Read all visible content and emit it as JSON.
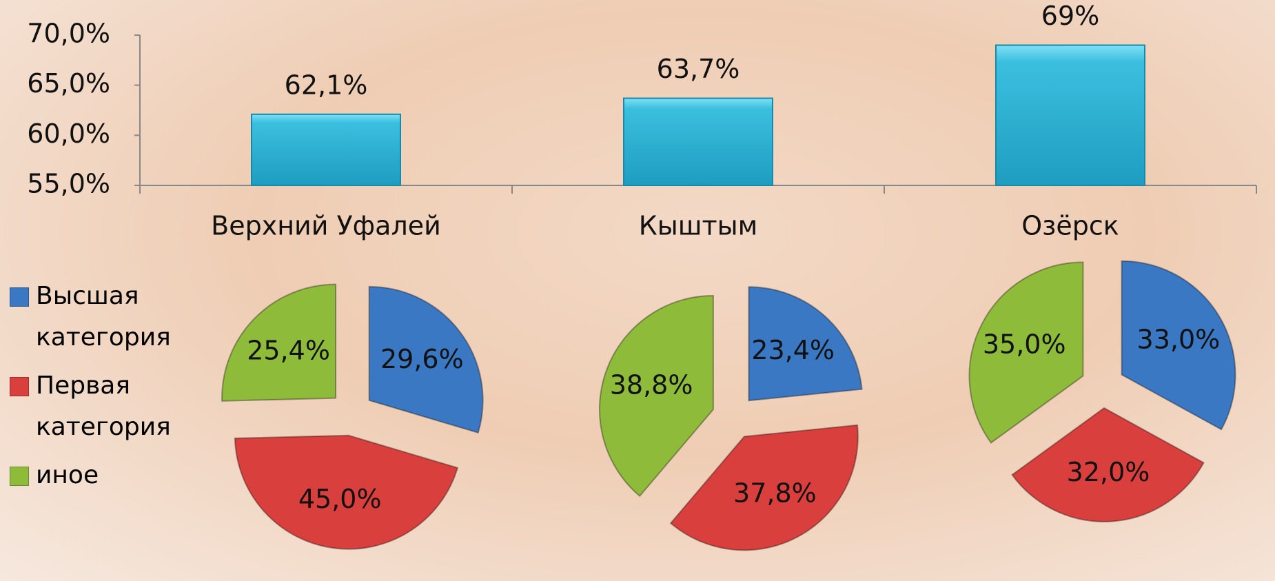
{
  "chart_data": [
    {
      "type": "bar",
      "categories": [
        "Верхний Уфалей",
        "Кыштым",
        "Озёрск"
      ],
      "values": [
        62.1,
        63.7,
        69
      ],
      "value_labels": [
        "62,1%",
        "63,7%",
        "69%"
      ],
      "color": "#2fb5d6",
      "ylim": [
        55,
        70
      ],
      "yticks": [
        {
          "value": 55,
          "label": "55,0%"
        },
        {
          "value": 60,
          "label": "60,0%"
        },
        {
          "value": 65,
          "label": "65,0%"
        },
        {
          "value": 70,
          "label": "70,0%"
        }
      ]
    },
    {
      "type": "pie",
      "categories": [
        "Высшая категория",
        "Первая категория",
        "иное"
      ],
      "colors": [
        "#3a78c4",
        "#d9403d",
        "#8ebc3a"
      ],
      "pies": [
        {
          "values": [
            29.6,
            45.0,
            25.4
          ],
          "value_labels": [
            "29,6%",
            "45,0%",
            "25,4%"
          ]
        },
        {
          "values": [
            23.4,
            37.8,
            38.8
          ],
          "value_labels": [
            "23,4%",
            "37,8%",
            "38,8%"
          ]
        },
        {
          "values": [
            33.0,
            32.0,
            35.0
          ],
          "value_labels": [
            "33,0%",
            "32,0%",
            "35,0%"
          ]
        }
      ]
    }
  ]
}
